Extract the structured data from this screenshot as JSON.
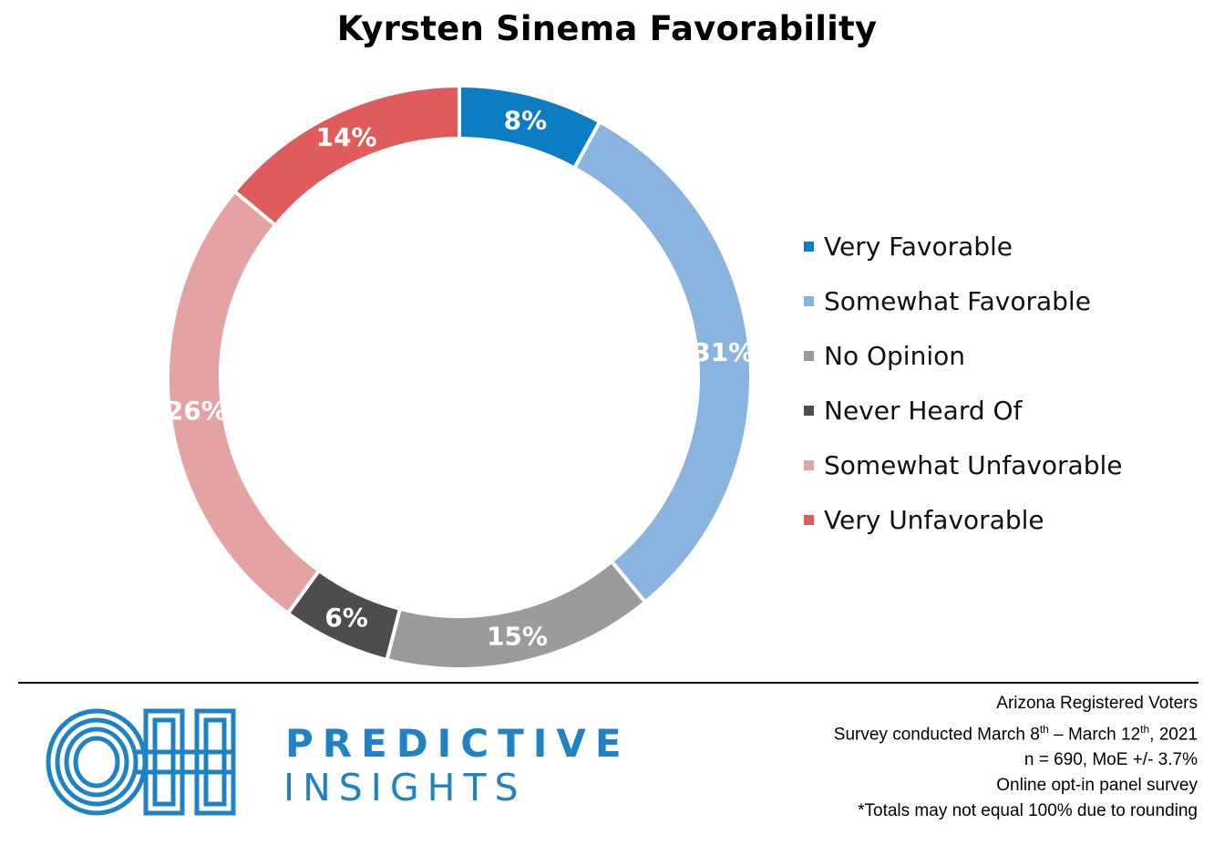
{
  "chart_data": {
    "type": "pie",
    "variant": "donut",
    "title": "Kyrsten Sinema Favorability",
    "legend_position": "right",
    "slices": [
      {
        "name": "Very Favorable",
        "value": 8,
        "label": "8%",
        "color": "#0c7dc2"
      },
      {
        "name": "Somewhat Favorable",
        "value": 31,
        "label": "31%",
        "color": "#8ab4e0"
      },
      {
        "name": "No Opinion",
        "value": 15,
        "label": "15%",
        "color": "#9b9b9b"
      },
      {
        "name": "Never Heard Of",
        "value": 6,
        "label": "6%",
        "color": "#4d4d4d"
      },
      {
        "name": "Somewhat Unfavorable",
        "value": 26,
        "label": "26%",
        "color": "#e5a2a2"
      },
      {
        "name": "Very Unfavorable",
        "value": 14,
        "label": "14%",
        "color": "#e05c5c"
      }
    ]
  },
  "brand": {
    "logo_icon": "oh-logo-icon",
    "line1": "PREDICTIVE",
    "line2": "INSIGHTS",
    "color": "#1e82c4"
  },
  "notes": {
    "line1": "Arizona Registered Voters",
    "survey_prefix": "Survey conducted March 8",
    "sup1": "th",
    "survey_mid": " – March 12",
    "sup2": "th",
    "survey_suffix": ", 2021",
    "line3": "n = 690, MoE +/- 3.7%",
    "line4": "Online opt-in panel survey",
    "line5": "*Totals may not equal 100% due to rounding"
  }
}
